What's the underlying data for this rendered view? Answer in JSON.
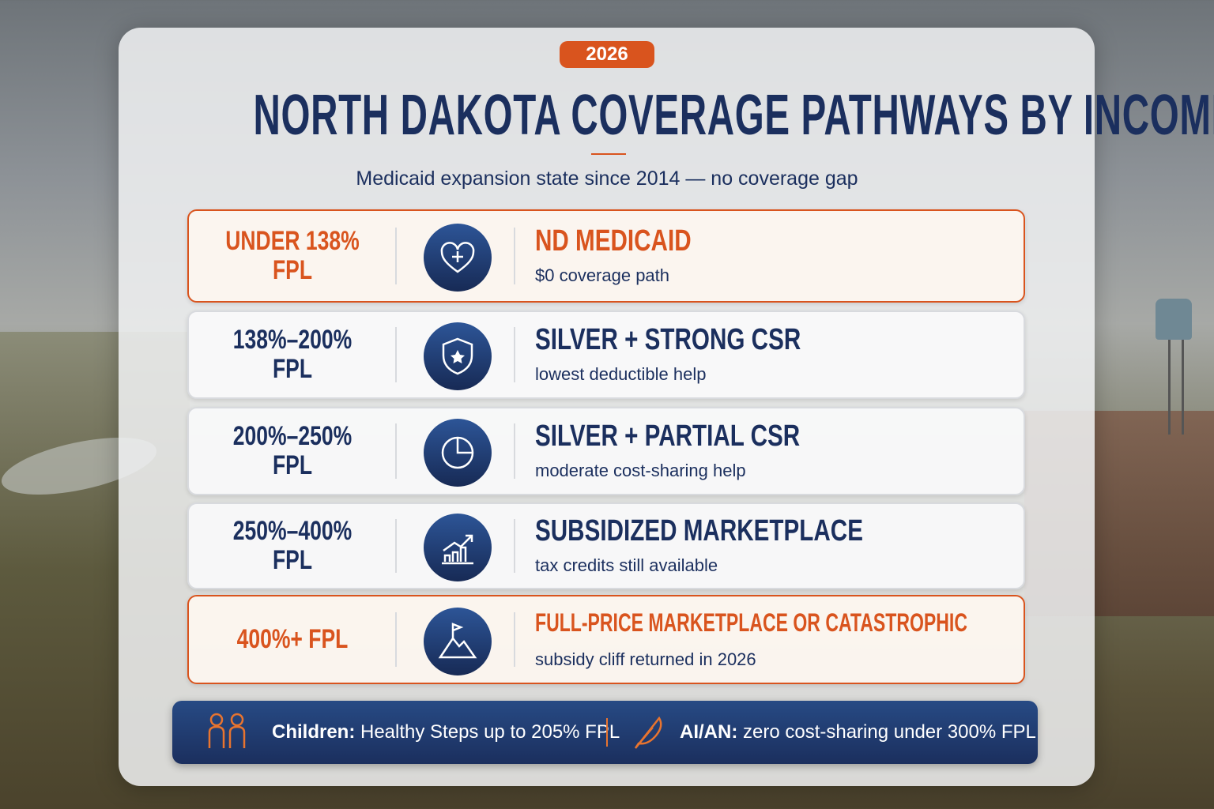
{
  "badge": "2026",
  "title": "NORTH DAKOTA COVERAGE PATHWAYS BY INCOME",
  "subtitle": "Medicaid expansion state since 2014 — no coverage gap",
  "rows": [
    {
      "income": "UNDER 138% FPL",
      "heading": "ND MEDICAID",
      "description": "$0 coverage path",
      "color": "#d9541e",
      "icon": "heart"
    },
    {
      "income": "138%–200% FPL",
      "heading": "SILVER + STRONG CSR",
      "description": "lowest deductible help",
      "color": "#1b2f5e",
      "icon": "shield"
    },
    {
      "income": "200%–250% FPL",
      "heading": "SILVER + PARTIAL CSR",
      "description": "moderate cost-sharing help",
      "color": "#1b2f5e",
      "icon": "pie"
    },
    {
      "income": "250%–400% FPL",
      "heading": "SUBSIDIZED MARKETPLACE",
      "description": "tax credits still available",
      "color": "#1b2f5e",
      "icon": "growth"
    },
    {
      "income": "400%+ FPL",
      "heading": "FULL-PRICE MARKETPLACE OR CATASTROPHIC",
      "description": "subsidy cliff returned in 2026",
      "color": "#d9541e",
      "icon": "mountain"
    }
  ],
  "footer": [
    {
      "label": "Children:",
      "text": "Healthy Steps up to 205% FPL"
    },
    {
      "label": "AI/AN:",
      "text": "zero cost-sharing under 300% FPL"
    }
  ]
}
